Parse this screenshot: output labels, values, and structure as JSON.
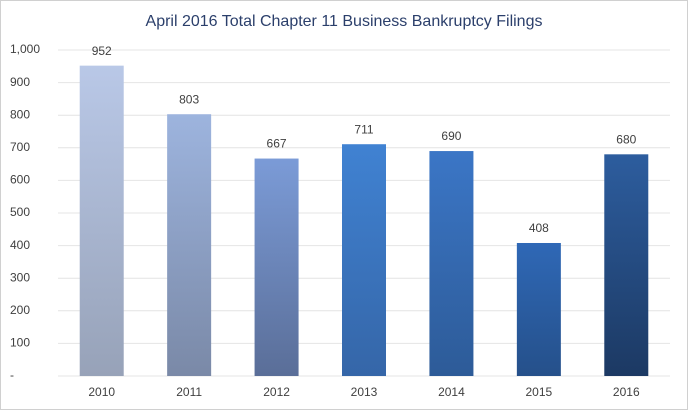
{
  "chart_data": {
    "type": "bar",
    "title": "April 2016 Total Chapter 11 Business Bankruptcy Filings",
    "categories": [
      "2010",
      "2011",
      "2012",
      "2013",
      "2014",
      "2015",
      "2016"
    ],
    "values": [
      952,
      803,
      667,
      711,
      690,
      408,
      680
    ],
    "gradient_colors": [
      [
        "#b9c8e7",
        "#97a2b8"
      ],
      [
        "#9db4de",
        "#7a89a7"
      ],
      [
        "#7b9bd7",
        "#5a6e98"
      ],
      [
        "#4082d2",
        "#3566a8"
      ],
      [
        "#3b76c6",
        "#2d5b98"
      ],
      [
        "#2f68b6",
        "#25508a"
      ],
      [
        "#2d5d9e",
        "#1c3963"
      ]
    ],
    "ylim": [
      0,
      1000
    ],
    "yticks": [
      {
        "value": 0,
        "label": "-"
      },
      100,
      200,
      300,
      400,
      500,
      600,
      700,
      800,
      900,
      {
        "value": 1000,
        "label": "1,000"
      }
    ],
    "grid": true
  }
}
